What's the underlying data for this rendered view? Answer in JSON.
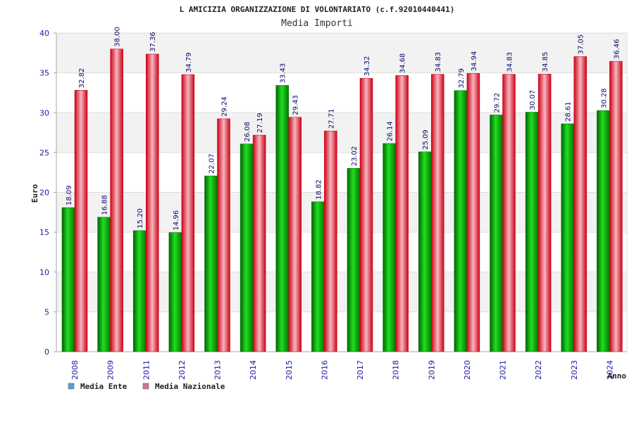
{
  "chart_data": {
    "type": "bar",
    "title": "L AMICIZIA ORGANIZZAZIONE DI VOLONTARIATO (c.f.92010440441)",
    "subtitle": "Media Importi",
    "ylabel": "Euro",
    "xlabel": "Anno",
    "ylim": [
      0,
      40
    ],
    "yticks": [
      0,
      5,
      10,
      15,
      20,
      25,
      30,
      35,
      40
    ],
    "grid": true,
    "legend_position": "bottom-left",
    "categories": [
      "2008",
      "2009",
      "2011",
      "2012",
      "2013",
      "2014",
      "2015",
      "2016",
      "2017",
      "2018",
      "2019",
      "2020",
      "2021",
      "2022",
      "2023",
      "2024"
    ],
    "series": [
      {
        "name": "Media Ente",
        "color": "#00b000",
        "legend_color": "#5b9bd5",
        "values": [
          18.09,
          16.88,
          15.2,
          14.96,
          22.07,
          26.08,
          33.43,
          18.82,
          23.02,
          26.14,
          25.09,
          32.79,
          29.72,
          30.07,
          28.61,
          30.28
        ],
        "labels": [
          "18.09",
          "16.88",
          "15.20",
          "14.96",
          "22.07",
          "26.08",
          "33.43",
          "18.82",
          "23.02",
          "26.14",
          "25.09",
          "32.79",
          "29.72",
          "30.07",
          "28.61",
          "30.28"
        ]
      },
      {
        "name": "Media Nazionale",
        "color": "#e0001a",
        "legend_color": "#d070a0",
        "values": [
          32.82,
          38.0,
          37.36,
          34.79,
          29.24,
          27.19,
          29.43,
          27.71,
          34.32,
          34.68,
          34.83,
          34.94,
          34.83,
          34.85,
          37.05,
          36.46
        ],
        "labels": [
          "32.82",
          "38.00",
          "37.36",
          "34.79",
          "29.24",
          "27.19",
          "29.43",
          "27.71",
          "34.32",
          "34.68",
          "34.83",
          "34.94",
          "34.83",
          "34.85",
          "37.05",
          "36.46"
        ]
      }
    ]
  }
}
